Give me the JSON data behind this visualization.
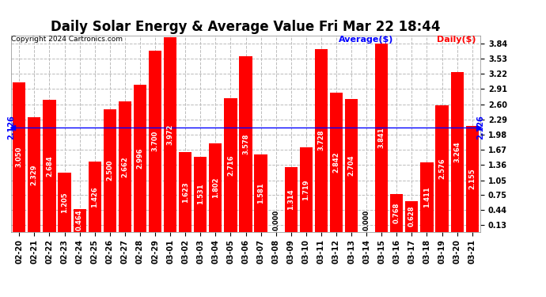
{
  "title": "Daily Solar Energy & Average Value Fri Mar 22 18:44",
  "copyright": "Copyright 2024 Cartronics.com",
  "categories": [
    "02-20",
    "02-21",
    "02-22",
    "02-23",
    "02-24",
    "02-25",
    "02-26",
    "02-27",
    "02-28",
    "02-29",
    "03-01",
    "03-02",
    "03-03",
    "03-04",
    "03-05",
    "03-06",
    "03-07",
    "03-08",
    "03-09",
    "03-10",
    "03-11",
    "03-12",
    "03-13",
    "03-14",
    "03-15",
    "03-16",
    "03-17",
    "03-18",
    "03-19",
    "03-20",
    "03-21"
  ],
  "values": [
    3.05,
    2.329,
    2.684,
    1.205,
    0.464,
    1.426,
    2.5,
    2.662,
    2.996,
    3.7,
    3.972,
    1.623,
    1.531,
    1.802,
    2.716,
    3.578,
    1.581,
    0.0,
    1.314,
    1.719,
    3.728,
    2.842,
    2.704,
    0.0,
    3.841,
    0.768,
    0.628,
    1.411,
    2.576,
    3.264,
    2.155
  ],
  "average": 2.126,
  "bar_color": "#ff0000",
  "average_color": "#0000ff",
  "average_label": "Average($)",
  "daily_label": "Daily($)",
  "ylim": [
    0,
    4.0
  ],
  "yticks": [
    0.13,
    0.44,
    0.75,
    1.05,
    1.36,
    1.67,
    1.98,
    2.29,
    2.6,
    2.91,
    3.22,
    3.53,
    3.84
  ],
  "background_color": "#ffffff",
  "grid_color": "#bbbbbb",
  "title_fontsize": 12,
  "label_fontsize": 7,
  "value_fontsize": 6,
  "avg_label_fontsize": 8,
  "avg_text_color": "#0000ff",
  "daily_text_color": "#ff0000"
}
